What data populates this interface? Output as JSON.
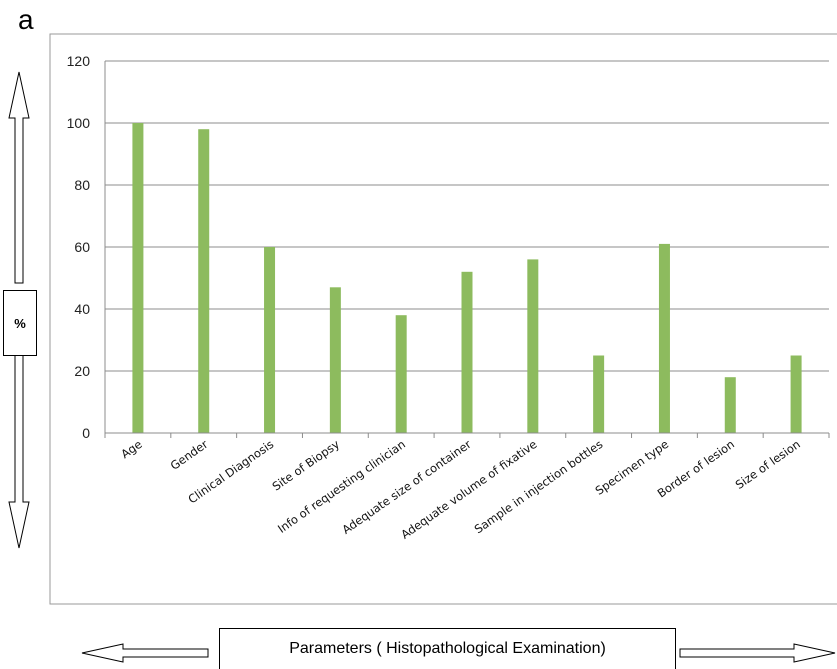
{
  "panel_label": "a",
  "chart_data": {
    "type": "bar",
    "title": "",
    "xlabel": "Parameters ( Histopathological  Examination)",
    "ylabel": "%",
    "ylim": [
      0,
      120
    ],
    "yticks": [
      0,
      20,
      40,
      60,
      80,
      100,
      120
    ],
    "grid": true,
    "bar_color": "#8dbb5e",
    "categories": [
      "Age",
      "Gender",
      "Clinical Diagnosis",
      "Site of Biopsy",
      "Info of requesting clinician",
      "Adequate size of container",
      "Adequate volume of fixative",
      "Sample in injection bottles",
      "Specimen type",
      "Border of lesion",
      "Size of lesion"
    ],
    "values": [
      100,
      98,
      60,
      47,
      38,
      52,
      56,
      25,
      61,
      18,
      25
    ]
  }
}
